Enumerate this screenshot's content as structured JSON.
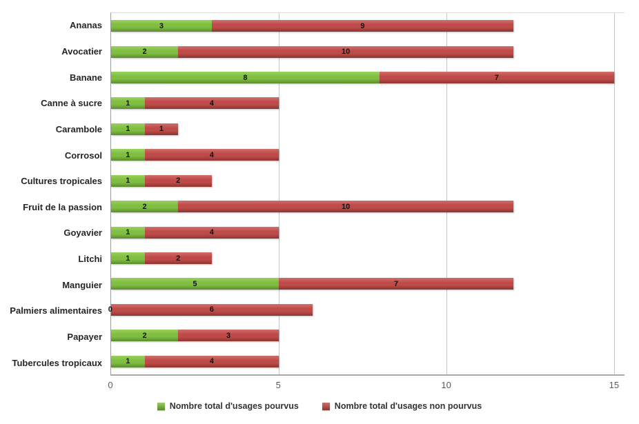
{
  "chart_data": {
    "type": "bar",
    "orientation": "horizontal-stacked",
    "title": "",
    "xlabel": "",
    "ylabel": "",
    "categories": [
      "Ananas",
      "Avocatier",
      "Banane",
      "Canne à sucre",
      "Carambole",
      "Corrosol",
      "Cultures tropicales",
      "Fruit de la passion",
      "Goyavier",
      "Litchi",
      "Manguier",
      "Palmiers alimentaires",
      "Papayer",
      "Tubercules tropicaux"
    ],
    "series": [
      {
        "key": "pourvus",
        "name": "Nombre total d'usages pourvus",
        "color": "#7FBE41",
        "color_light": "#9BD05F",
        "color_dark": "#5C8B2E",
        "values": [
          3,
          2,
          8,
          1,
          1,
          1,
          1,
          2,
          1,
          1,
          5,
          0,
          2,
          1
        ]
      },
      {
        "key": "non_pourvus",
        "name": "Nombre total d'usages non pourvus",
        "color": "#BE4B48",
        "color_light": "#CF6F6C",
        "color_dark": "#8C3532",
        "values": [
          9,
          10,
          7,
          4,
          1,
          4,
          2,
          10,
          4,
          2,
          7,
          6,
          3,
          4
        ]
      }
    ],
    "xlim": [
      0,
      15.31
    ],
    "xticks": [
      0,
      5,
      10,
      15
    ],
    "grid": true,
    "value_labels": true,
    "legend_position": "bottom"
  }
}
